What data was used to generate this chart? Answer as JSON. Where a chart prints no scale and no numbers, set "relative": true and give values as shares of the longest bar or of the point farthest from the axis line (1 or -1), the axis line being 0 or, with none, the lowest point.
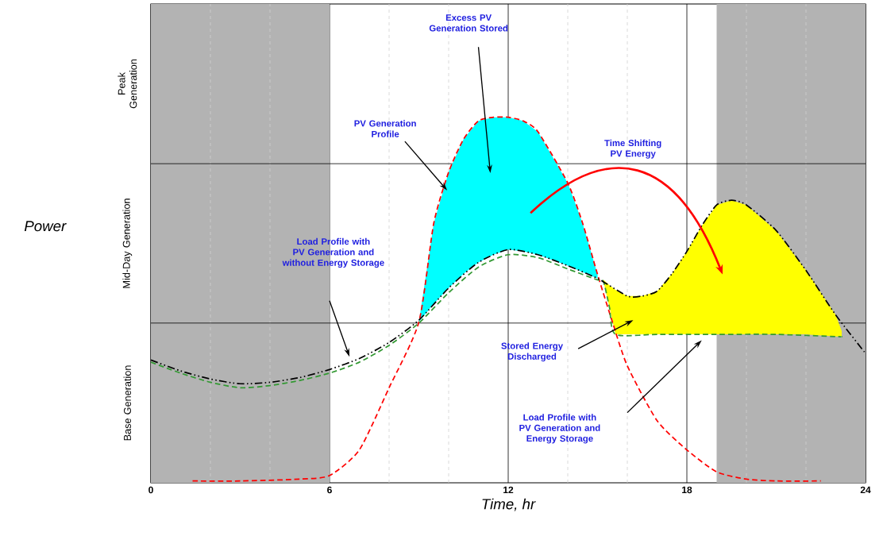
{
  "chart_data": {
    "type": "line",
    "relative": true,
    "xlabel": "Time, hr",
    "xlim": [
      0,
      24
    ],
    "xticks": [
      0,
      6,
      12,
      18,
      24
    ],
    "grid": "x",
    "bands": [
      {
        "axis": "x",
        "from": 0,
        "to": 6,
        "color": "#b3b3b3"
      },
      {
        "axis": "x",
        "from": 19,
        "to": 24,
        "color": "#b3b3b3"
      }
    ],
    "ref_lines": [
      {
        "axis": "x",
        "value": 2,
        "color": "#d0d0d0",
        "line_style": "dashed"
      },
      {
        "axis": "x",
        "value": 4,
        "color": "#d0d0d0",
        "line_style": "dashed"
      },
      {
        "axis": "x",
        "value": 8,
        "color": "#d0d0d0",
        "line_style": "dashed"
      },
      {
        "axis": "x",
        "value": 10,
        "color": "#d0d0d0",
        "line_style": "dashed"
      },
      {
        "axis": "x",
        "value": 14,
        "color": "#d0d0d0",
        "line_style": "dashed"
      },
      {
        "axis": "x",
        "value": 16,
        "color": "#d0d0d0",
        "line_style": "dashed"
      },
      {
        "axis": "x",
        "value": 20,
        "color": "#d0d0d0",
        "line_style": "dashed"
      },
      {
        "axis": "x",
        "value": 22,
        "color": "#d0d0d0",
        "line_style": "dashed"
      },
      {
        "axis": "y",
        "value": 0.437,
        "color": "#000000",
        "line_style": "solid"
      },
      {
        "axis": "y",
        "value": 0.873,
        "color": "#000000",
        "line_style": "solid"
      }
    ],
    "series": [
      {
        "color": "#00ffff",
        "x": [
          9,
          9.5,
          10,
          10.5,
          11,
          11.5,
          12,
          12.5,
          13,
          14,
          14.5,
          15
        ],
        "values": [
          null,
          null,
          null,
          null,
          null,
          null,
          null,
          null,
          null,
          null,
          null,
          null
        ],
        "lower": [
          0.44,
          0.49,
          0.533,
          0.572,
          0.603,
          0.624,
          0.638,
          0.633,
          0.624,
          0.594,
          0.576,
          0.559
        ],
        "upper": [
          0.44,
          0.71,
          0.85,
          0.94,
          0.99,
          1,
          1,
          0.99,
          0.96,
          0.82,
          0.71,
          0.57
        ]
      },
      {
        "color": "#ffff00",
        "x": [
          15.2,
          15.4,
          15.6,
          16,
          16.5,
          17,
          17.5,
          18,
          18.5,
          19,
          19.5,
          20,
          21,
          22,
          23,
          23.2
        ],
        "values": [
          null,
          null,
          null,
          null,
          null,
          null,
          null,
          null,
          null,
          null,
          null,
          null,
          null,
          null,
          null,
          null
        ],
        "lower": [
          0.55,
          0.48,
          0.406,
          0.406,
          0.406,
          0.406,
          0.406,
          0.406,
          0.406,
          0.406,
          0.406,
          0.406,
          0.406,
          0.406,
          0.4,
          0.4
        ],
        "upper": [
          0.555,
          0.541,
          0.528,
          0.511,
          0.511,
          0.524,
          0.572,
          0.633,
          0.703,
          0.76,
          0.773,
          0.76,
          0.69,
          0.581,
          0.459,
          0.415
        ]
      },
      {
        "color": "#ff0000",
        "line_style": "dashed",
        "x": [
          1.4,
          3,
          5,
          6,
          7,
          8,
          9,
          9.5,
          10,
          10.5,
          11,
          11.5,
          12,
          12.5,
          13,
          14,
          14.5,
          15,
          15.5,
          16,
          17,
          18,
          19,
          20,
          21,
          22.5
        ],
        "values": [
          0.005,
          0.005,
          0.01,
          0.02,
          0.09,
          0.26,
          0.44,
          0.71,
          0.85,
          0.94,
          0.99,
          1,
          1,
          0.99,
          0.96,
          0.82,
          0.71,
          0.57,
          0.44,
          0.32,
          0.17,
          0.09,
          0.03,
          0.01,
          0.005,
          0.005
        ]
      },
      {
        "color": "#339933",
        "line_style": "dashed",
        "x": [
          0,
          1,
          2,
          3,
          4,
          5,
          6,
          7,
          8,
          9,
          10,
          11,
          12,
          13,
          14,
          15,
          15.2,
          15.4,
          15.6,
          17,
          19,
          21,
          23,
          23.2
        ],
        "values": [
          0.33,
          0.3,
          0.275,
          0.26,
          0.266,
          0.28,
          0.3,
          0.33,
          0.376,
          0.437,
          0.52,
          0.59,
          0.624,
          0.616,
          0.585,
          0.555,
          0.55,
          0.48,
          0.406,
          0.406,
          0.406,
          0.406,
          0.4,
          0.4
        ]
      },
      {
        "color": "#000000",
        "line_style": "dashdot",
        "x": [
          0,
          1,
          2,
          3,
          4,
          5,
          6,
          7,
          8,
          9,
          10,
          11,
          12,
          13,
          14,
          15,
          16,
          16.5,
          17,
          17.5,
          18,
          18.5,
          19,
          19.5,
          20,
          21,
          22,
          23,
          24
        ],
        "values": [
          0.336,
          0.306,
          0.284,
          0.271,
          0.275,
          0.288,
          0.31,
          0.34,
          0.384,
          0.445,
          0.533,
          0.603,
          0.638,
          0.624,
          0.594,
          0.559,
          0.511,
          0.511,
          0.524,
          0.572,
          0.633,
          0.703,
          0.76,
          0.773,
          0.76,
          0.69,
          0.581,
          0.459,
          0.354
        ]
      }
    ],
    "annotations": [
      "Excess PV Generation Stored",
      "PV Generation Profile",
      "Time Shifting PV Energy",
      "Load Profile with PV Generation and without Energy Storage",
      "Stored Energy Discharged",
      "Load Profile with PV Generation and Energy Storage",
      "Base Generation",
      "Mid-Day  Generation",
      "Peak Generation",
      "Power"
    ]
  }
}
